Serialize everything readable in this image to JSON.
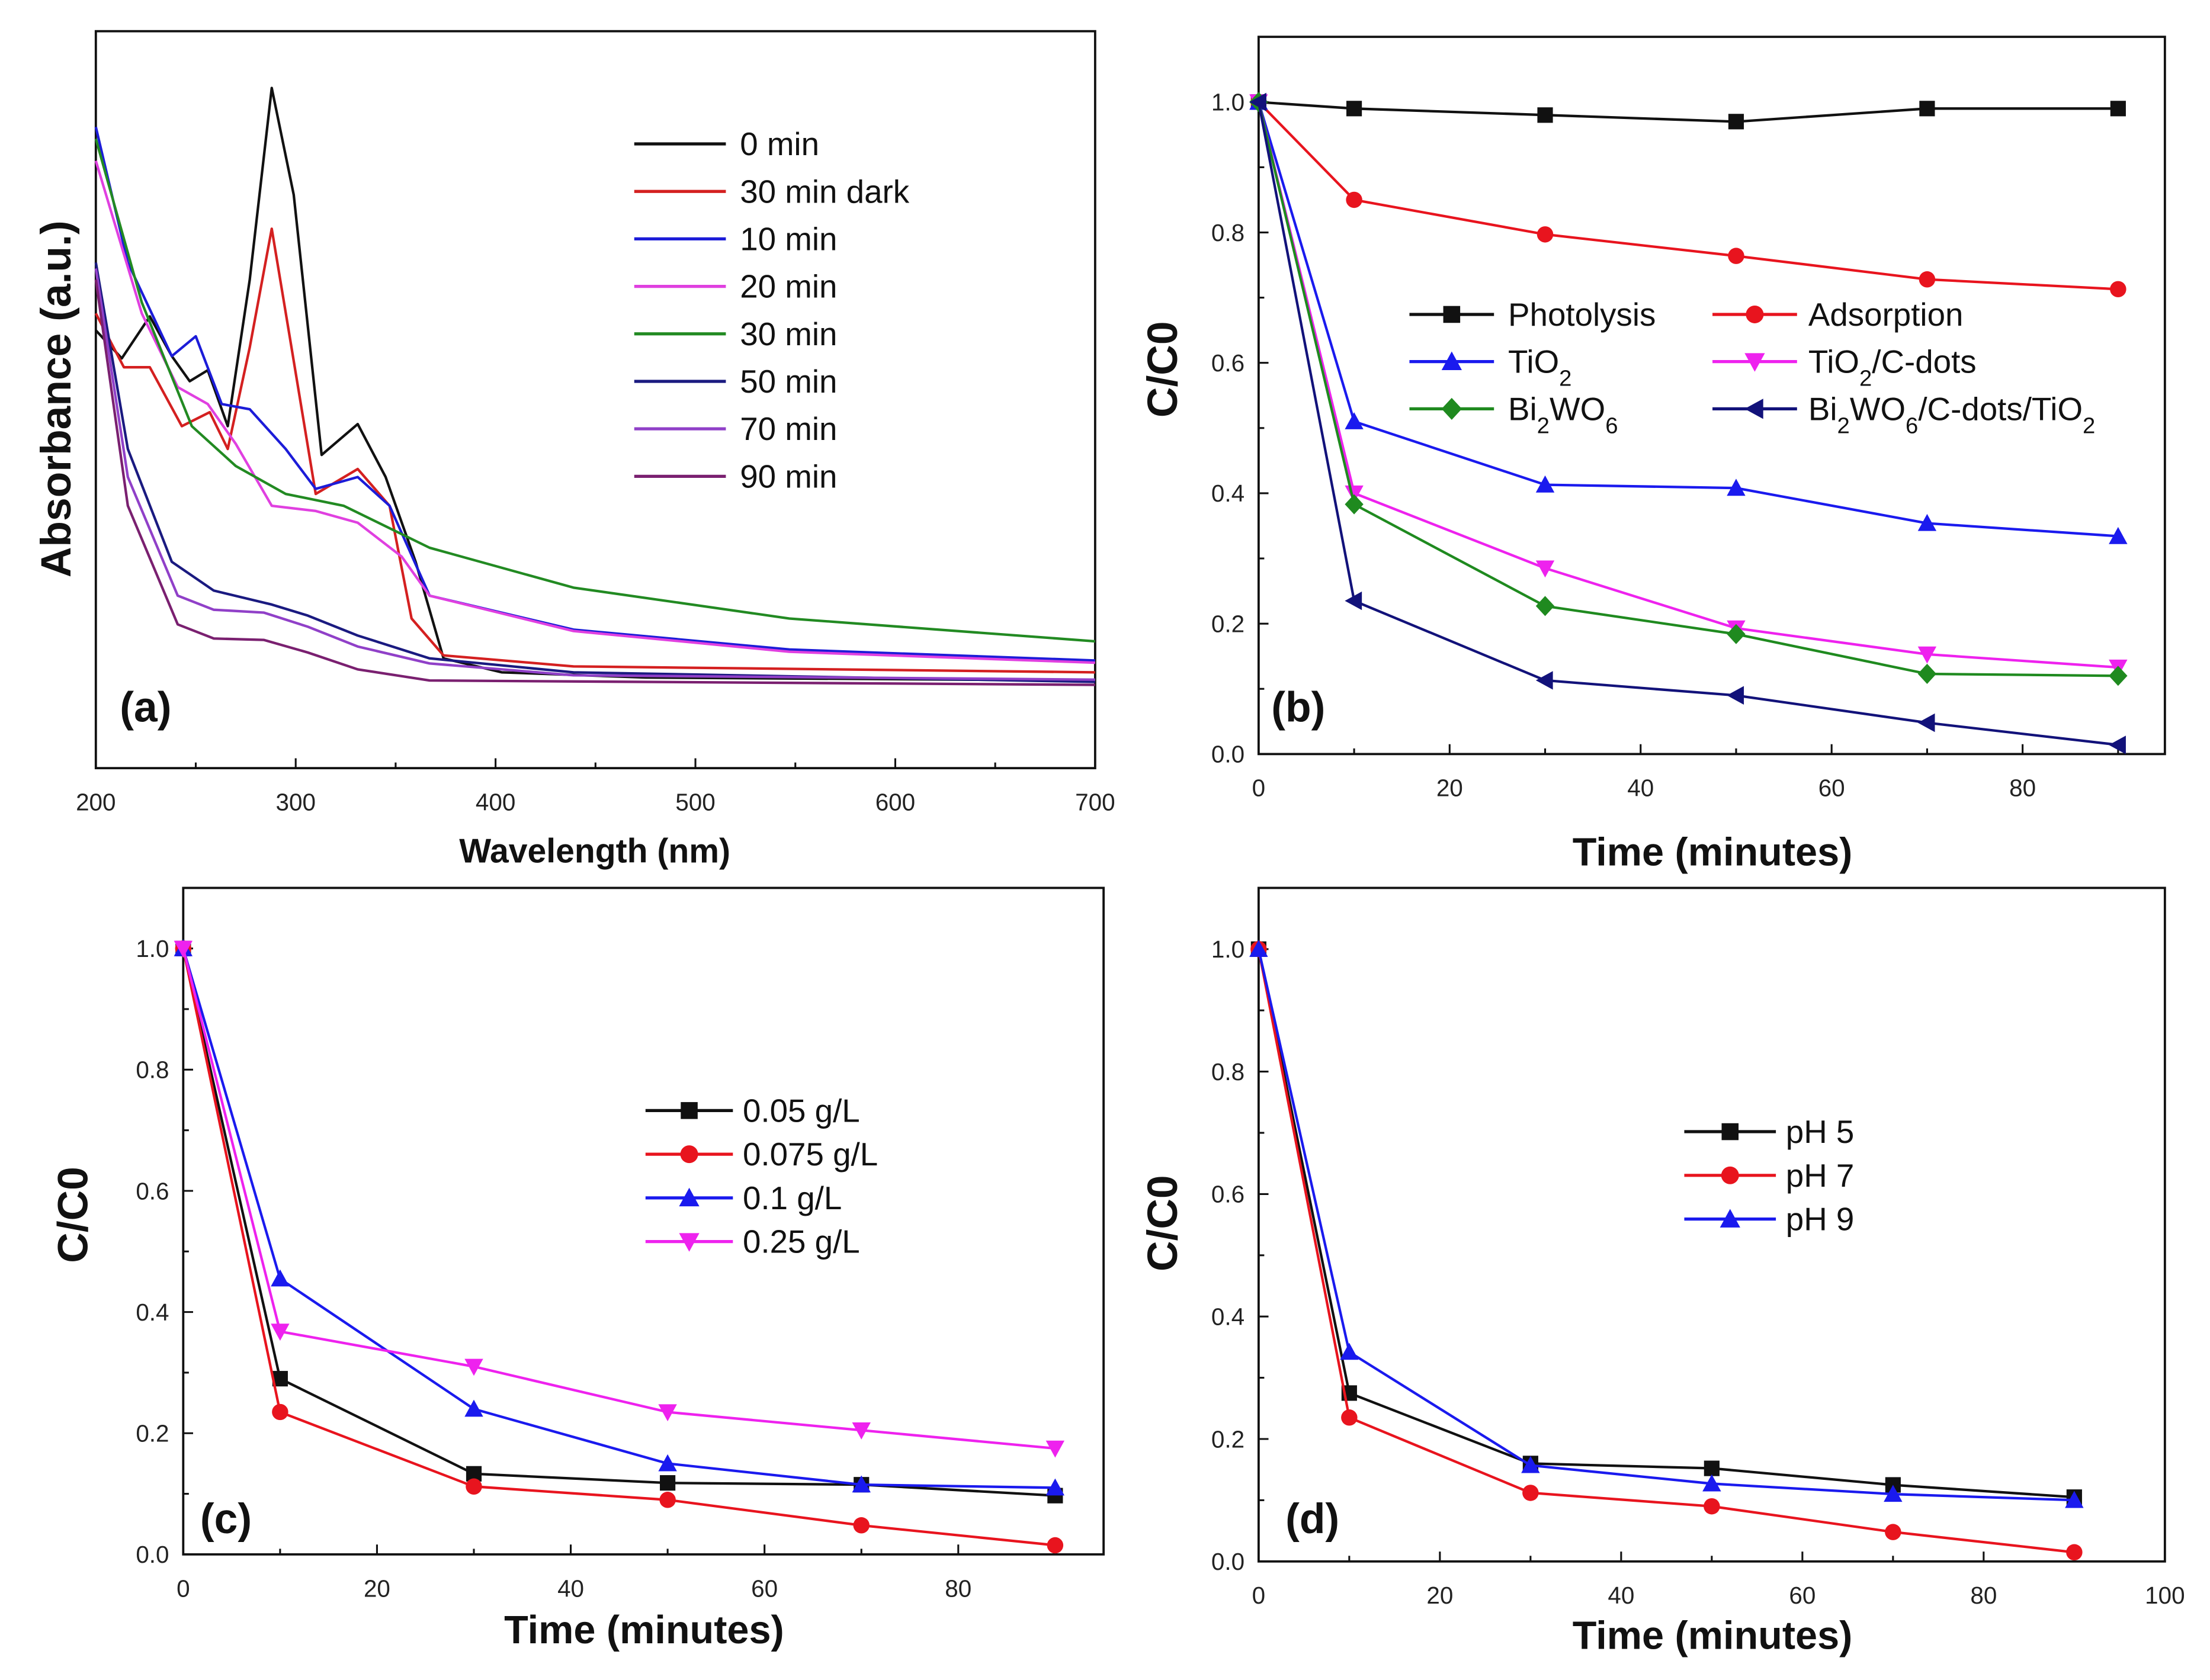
{
  "chart_data": [
    {
      "id": "a",
      "type": "line",
      "panel_label": "(a)",
      "xlabel": "Wavelength (nm)",
      "ylabel": "Absorbance (a.u.)",
      "xlim": [
        200,
        700
      ],
      "ylim": [
        0,
        1
      ],
      "xticks": [
        200,
        300,
        400,
        500,
        600,
        700
      ],
      "xminor": 50,
      "yticks": [],
      "legend_position": "top-right",
      "series": [
        {
          "name": "0 min",
          "color": "#111111",
          "marker": "none",
          "x": [
            200,
            213,
            227,
            238,
            247,
            256,
            266,
            277,
            288,
            299,
            313,
            331,
            345,
            360,
            374,
            403,
            475,
            700
          ],
          "y": [
            0.594,
            0.556,
            0.613,
            0.559,
            0.525,
            0.54,
            0.464,
            0.663,
            0.923,
            0.778,
            0.425,
            0.467,
            0.395,
            0.28,
            0.149,
            0.13,
            0.123,
            0.119
          ]
        },
        {
          "name": "30 min dark",
          "color": "#d42020",
          "marker": "none",
          "x": [
            200,
            214,
            227,
            243,
            257,
            266,
            277,
            288,
            297,
            310,
            331,
            347,
            358,
            374,
            439,
            700
          ],
          "y": [
            0.617,
            0.544,
            0.544,
            0.464,
            0.483,
            0.433,
            0.571,
            0.732,
            0.586,
            0.372,
            0.406,
            0.356,
            0.203,
            0.153,
            0.138,
            0.13
          ]
        },
        {
          "name": "10 min",
          "color": "#1c1cd8",
          "marker": "none",
          "x": [
            200,
            216,
            238,
            250,
            263,
            277,
            295,
            310,
            331,
            347,
            367,
            439,
            547,
            700
          ],
          "y": [
            0.87,
            0.686,
            0.559,
            0.586,
            0.494,
            0.487,
            0.433,
            0.379,
            0.395,
            0.356,
            0.234,
            0.188,
            0.161,
            0.146
          ]
        },
        {
          "name": "20 min",
          "color": "#e040e0",
          "marker": "none",
          "x": [
            200,
            223,
            241,
            256,
            270,
            288,
            310,
            331,
            353,
            367,
            439,
            547,
            700
          ],
          "y": [
            0.824,
            0.617,
            0.517,
            0.494,
            0.44,
            0.356,
            0.349,
            0.333,
            0.287,
            0.234,
            0.186,
            0.158,
            0.143
          ]
        },
        {
          "name": "30 min",
          "color": "#228a22",
          "marker": "none",
          "x": [
            200,
            223,
            248,
            270,
            295,
            324,
            367,
            439,
            547,
            700
          ],
          "y": [
            0.854,
            0.632,
            0.464,
            0.41,
            0.372,
            0.356,
            0.299,
            0.245,
            0.203,
            0.172
          ]
        },
        {
          "name": "50 min",
          "color": "#1a1a80",
          "marker": "none",
          "x": [
            200,
            216,
            238,
            259,
            288,
            306,
            331,
            367,
            439,
            700
          ],
          "y": [
            0.686,
            0.433,
            0.28,
            0.241,
            0.222,
            0.207,
            0.18,
            0.149,
            0.13,
            0.117
          ]
        },
        {
          "name": "70 min",
          "color": "#9040c8",
          "marker": "none",
          "x": [
            200,
            216,
            241,
            259,
            284,
            306,
            331,
            367,
            439,
            700
          ],
          "y": [
            0.678,
            0.395,
            0.234,
            0.215,
            0.211,
            0.192,
            0.165,
            0.142,
            0.126,
            0.12
          ]
        },
        {
          "name": "90 min",
          "color": "#7a2070",
          "marker": "none",
          "x": [
            200,
            216,
            241,
            259,
            284,
            306,
            331,
            367,
            700
          ],
          "y": [
            0.663,
            0.356,
            0.195,
            0.176,
            0.174,
            0.157,
            0.134,
            0.119,
            0.113
          ]
        }
      ]
    },
    {
      "id": "b",
      "type": "line",
      "panel_label": "(b)",
      "xlabel": "Time (minutes)",
      "ylabel": "C/C0",
      "xlim": [
        0,
        94.9
      ],
      "ylim": [
        0,
        1.1
      ],
      "xticks": [
        0,
        20,
        40,
        60,
        80
      ],
      "xminor": 10,
      "yticks": [
        "0.0",
        "0.2",
        "0.4",
        "0.6",
        "0.8",
        "1.0"
      ],
      "yminor": 0.1,
      "legend_position": "center-right",
      "series": [
        {
          "name": "Photolysis",
          "color": "#111111",
          "marker": "square",
          "x": [
            0,
            10,
            30,
            50,
            70,
            90
          ],
          "y": [
            1.0,
            0.99,
            0.98,
            0.97,
            0.99,
            0.99
          ]
        },
        {
          "name": "Adsorption",
          "color": "#e8141e",
          "marker": "circle",
          "x": [
            0,
            10,
            30,
            50,
            70,
            90
          ],
          "y": [
            1.0,
            0.85,
            0.797,
            0.764,
            0.728,
            0.713
          ]
        },
        {
          "name": "TiO2",
          "color": "#1a1aee",
          "marker": "triangle-up",
          "x": [
            0,
            10,
            30,
            50,
            70,
            90
          ],
          "y": [
            1.0,
            0.51,
            0.413,
            0.408,
            0.354,
            0.334
          ]
        },
        {
          "name": "TiO2/C-dots",
          "color": "#ee22ee",
          "marker": "triangle-down",
          "x": [
            0,
            10,
            30,
            50,
            70,
            90
          ],
          "y": [
            1.0,
            0.4,
            0.285,
            0.193,
            0.153,
            0.133
          ]
        },
        {
          "name": "Bi2WO6",
          "color": "#1f8a1f",
          "marker": "diamond",
          "x": [
            0,
            10,
            30,
            50,
            70,
            90
          ],
          "y": [
            1.0,
            0.383,
            0.227,
            0.184,
            0.123,
            0.12
          ]
        },
        {
          "name": "Bi2WO6/C-dots/TiO2",
          "color": "#12127a",
          "marker": "triangle-left",
          "x": [
            0,
            10,
            30,
            50,
            70,
            90
          ],
          "y": [
            1.0,
            0.235,
            0.113,
            0.09,
            0.048,
            0.014
          ]
        }
      ]
    },
    {
      "id": "c",
      "type": "line",
      "panel_label": "(c)",
      "xlabel": "Time (minutes)",
      "ylabel": "C/C0",
      "xlim": [
        0,
        95
      ],
      "ylim": [
        0,
        1.1
      ],
      "xticks": [
        0,
        20,
        40,
        60,
        80
      ],
      "xminor": 10,
      "yticks": [
        "0.0",
        "0.2",
        "0.4",
        "0.6",
        "0.8",
        "1.0"
      ],
      "yminor": 0.1,
      "legend_position": "center-right",
      "series": [
        {
          "name": "0.05 g/L",
          "color": "#111111",
          "marker": "square",
          "x": [
            0,
            10,
            30,
            50,
            70,
            90
          ],
          "y": [
            1.0,
            0.29,
            0.133,
            0.118,
            0.115,
            0.097
          ]
        },
        {
          "name": "0.075 g/L",
          "color": "#e8141e",
          "marker": "circle",
          "x": [
            0,
            10,
            30,
            50,
            70,
            90
          ],
          "y": [
            1.0,
            0.235,
            0.112,
            0.09,
            0.048,
            0.015
          ]
        },
        {
          "name": "0.1 g/L",
          "color": "#1a1aee",
          "marker": "triangle-up",
          "x": [
            0,
            10,
            30,
            50,
            70,
            90
          ],
          "y": [
            1.0,
            0.455,
            0.24,
            0.15,
            0.115,
            0.11
          ]
        },
        {
          "name": "0.25 g/L",
          "color": "#ee22ee",
          "marker": "triangle-down",
          "x": [
            0,
            10,
            30,
            50,
            70,
            90
          ],
          "y": [
            1.0,
            0.368,
            0.31,
            0.235,
            0.205,
            0.175
          ]
        }
      ]
    },
    {
      "id": "d",
      "type": "line",
      "panel_label": "(d)",
      "xlabel": "Time (minutes)",
      "ylabel": "C/C0",
      "xlim": [
        0,
        100
      ],
      "ylim": [
        0,
        1.1
      ],
      "xticks": [
        0,
        20,
        40,
        60,
        80,
        100
      ],
      "xminor": 10,
      "yticks": [
        "0.0",
        "0.2",
        "0.4",
        "0.6",
        "0.8",
        "1.0"
      ],
      "yminor": 0.1,
      "legend_position": "center-right",
      "series": [
        {
          "name": "pH 5",
          "color": "#111111",
          "marker": "square",
          "x": [
            0,
            10,
            30,
            50,
            70,
            90
          ],
          "y": [
            1.0,
            0.275,
            0.16,
            0.152,
            0.125,
            0.105
          ]
        },
        {
          "name": "pH 7",
          "color": "#e8141e",
          "marker": "circle",
          "x": [
            0,
            10,
            30,
            50,
            70,
            90
          ],
          "y": [
            1.0,
            0.235,
            0.112,
            0.09,
            0.048,
            0.015
          ]
        },
        {
          "name": "pH 9",
          "color": "#1a1aee",
          "marker": "triangle-up",
          "x": [
            0,
            10,
            30,
            50,
            70,
            90
          ],
          "y": [
            1.0,
            0.342,
            0.157,
            0.127,
            0.11,
            0.1
          ]
        }
      ]
    }
  ]
}
